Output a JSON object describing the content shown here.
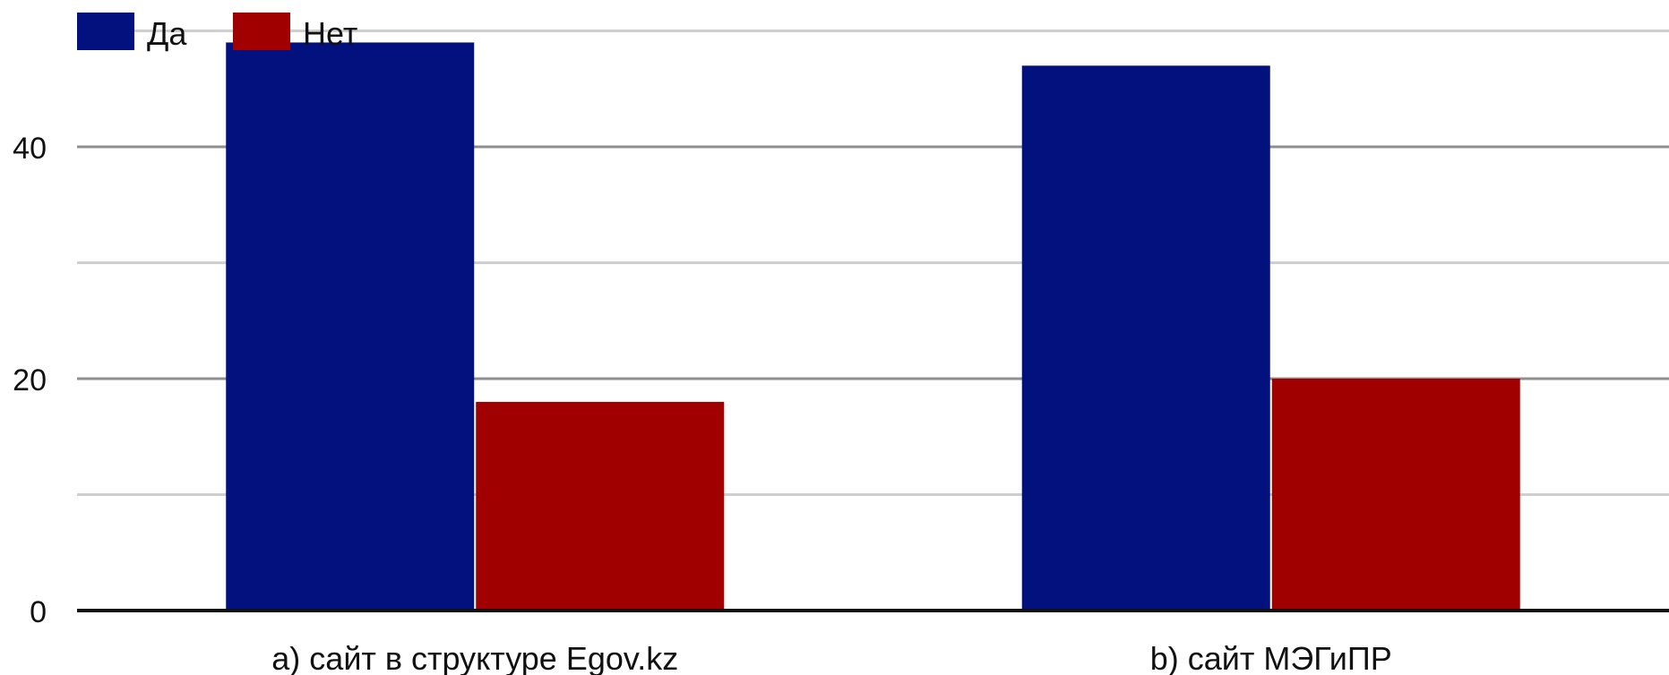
{
  "chart_data": {
    "type": "bar",
    "categories": [
      "a) сайт в структуре Egov.kz",
      "b) сайт МЭГиПР"
    ],
    "series": [
      {
        "name": "Да",
        "values": [
          49,
          47
        ],
        "color": "#03117f"
      },
      {
        "name": "Нет",
        "values": [
          18,
          20
        ],
        "color": "#a10000"
      }
    ],
    "ylim": [
      0,
      50
    ],
    "yticks": [
      0,
      20,
      40
    ],
    "minor_gridlines": [
      10,
      30,
      50
    ],
    "grid": true,
    "legend_position": "top-left",
    "title": "",
    "xlabel": "",
    "ylabel": ""
  }
}
